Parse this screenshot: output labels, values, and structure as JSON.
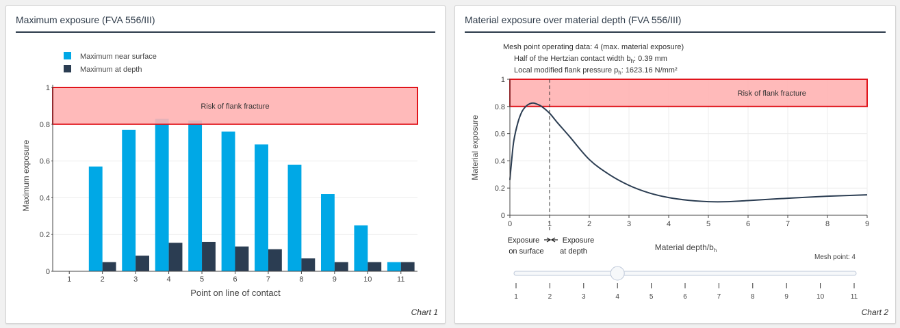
{
  "colors": {
    "surface": "#00a8e6",
    "depth": "#2b3d52",
    "risk_fill": "#ffb3b3",
    "risk_stroke": "#e0141b",
    "curve": "#2b3d52"
  },
  "chart_data": [
    {
      "type": "bar",
      "panel_title": "Maximum exposure (FVA 556/III)",
      "footer": "Chart 1",
      "xlabel": "Point on line of contact",
      "ylabel": "Maximum exposure",
      "categories": [
        "1",
        "2",
        "3",
        "4",
        "5",
        "6",
        "7",
        "8",
        "9",
        "10",
        "11"
      ],
      "series": [
        {
          "name": "Maximum near surface",
          "values": [
            0,
            0.57,
            0.77,
            0.83,
            0.82,
            0.76,
            0.69,
            0.58,
            0.42,
            0.25,
            0.05
          ]
        },
        {
          "name": "Maximum at depth",
          "values": [
            0,
            0.05,
            0.085,
            0.155,
            0.16,
            0.135,
            0.12,
            0.07,
            0.05,
            0.05,
            0.05
          ]
        }
      ],
      "ylim": [
        0,
        1
      ],
      "yticks": [
        "0",
        "0.2",
        "0.4",
        "0.6",
        "0.8",
        "1"
      ],
      "risk_zone": {
        "from": 0.8,
        "to": 1.0,
        "label": "Risk of flank fracture"
      },
      "legend": "top-left"
    },
    {
      "type": "line",
      "panel_title": "Material exposure over material depth (FVA 556/III)",
      "footer": "Chart 2",
      "xlabel": "Material depth/b",
      "xlabel_sub": "h",
      "ylabel": "Material exposure",
      "xlim": [
        0,
        9
      ],
      "ylim": [
        0,
        1
      ],
      "xticks": [
        "0",
        "1",
        "2",
        "3",
        "4",
        "5",
        "6",
        "7",
        "8",
        "9"
      ],
      "yticks": [
        "0",
        "0.2",
        "0.4",
        "0.6",
        "0.8",
        "1"
      ],
      "x": [
        0,
        0.05,
        0.1,
        0.2,
        0.3,
        0.4,
        0.5,
        0.6,
        0.7,
        0.8,
        1.0,
        1.2,
        1.5,
        2.0,
        2.5,
        3.0,
        3.5,
        4.0,
        4.5,
        5.0,
        5.5,
        6.0,
        7.0,
        8.0,
        9.0
      ],
      "y": [
        0.26,
        0.42,
        0.55,
        0.68,
        0.76,
        0.8,
        0.82,
        0.825,
        0.815,
        0.8,
        0.75,
        0.68,
        0.58,
        0.41,
        0.3,
        0.22,
        0.165,
        0.13,
        0.11,
        0.1,
        0.1,
        0.108,
        0.125,
        0.14,
        0.15
      ],
      "risk_zone": {
        "from": 0.8,
        "to": 1.0,
        "label": "Risk of flank fracture"
      },
      "divider_x": 1.0,
      "info": {
        "line1": "Mesh point operating data: 4 (max. material exposure)",
        "line2_prefix": "Half of the Hertzian contact width b",
        "line2_sub": "h",
        "line2_suffix": ": 0.39 mm",
        "line3_prefix": "Local modified flank pressure p",
        "line3_sub": "h",
        "line3_suffix": ": 1623.16 N/mm²"
      },
      "surface_label": [
        "Exposure",
        "on surface"
      ],
      "depth_label": [
        "Exposure",
        "at depth"
      ],
      "slider": {
        "label": "Mesh point: 4",
        "value": 4,
        "min": 1,
        "max": 11,
        "ticks": [
          "1",
          "2",
          "3",
          "4",
          "5",
          "6",
          "7",
          "8",
          "9",
          "10",
          "11"
        ]
      }
    }
  ]
}
